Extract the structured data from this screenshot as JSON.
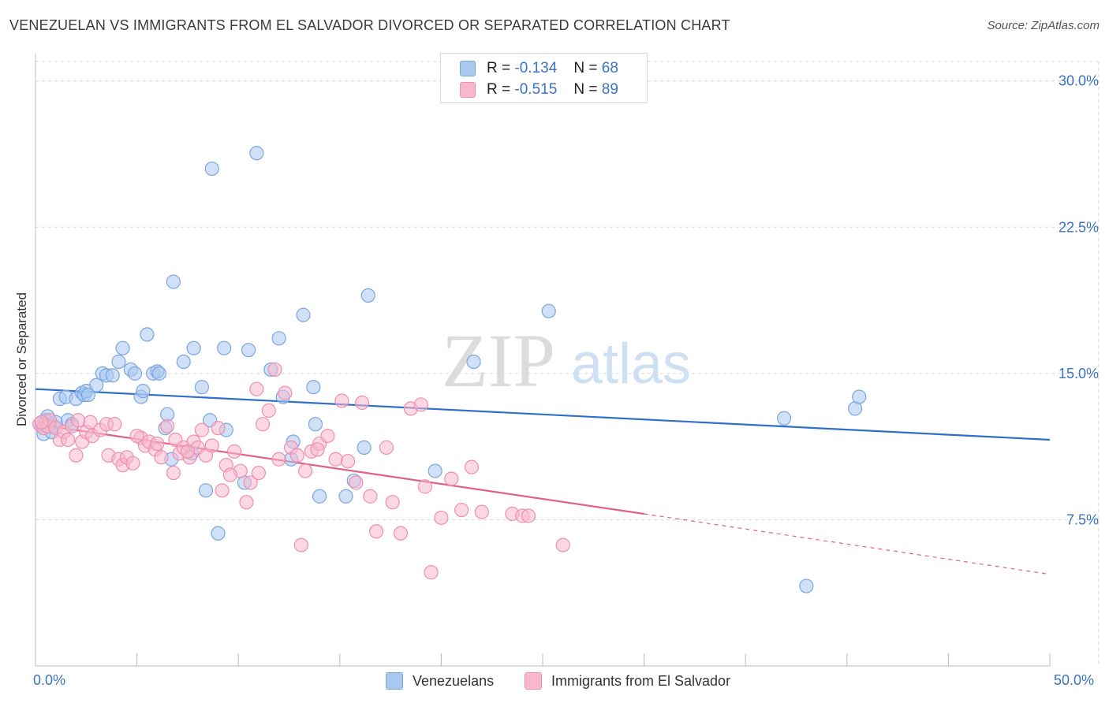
{
  "header": {
    "title": "VENEZUELAN VS IMMIGRANTS FROM EL SALVADOR DIVORCED OR SEPARATED CORRELATION CHART",
    "source": "Source: ZipAtlas.com"
  },
  "watermark": {
    "zip": "ZIP",
    "atlas": "atlas"
  },
  "legend": {
    "series": [
      {
        "r_label": "R =",
        "r_value": "-0.134",
        "n_label": "N =",
        "n_value": "68",
        "color": "#a9c8f0",
        "border": "#7aa6e0"
      },
      {
        "r_label": "R =",
        "r_value": "-0.515",
        "n_label": "N =",
        "n_value": "89",
        "color": "#f7b8cc",
        "border": "#ee8fae"
      }
    ]
  },
  "bottom_legend": {
    "items": [
      {
        "label": "Venezuelans",
        "color": "#a9c8f0",
        "border": "#7aa6e0"
      },
      {
        "label": "Immigrants from El Salvador",
        "color": "#f7b8cc",
        "border": "#ee8fae"
      }
    ]
  },
  "chart_data": {
    "type": "scatter",
    "title": "VENEZUELAN VS IMMIGRANTS FROM EL SALVADOR DIVORCED OR SEPARATED CORRELATION CHART",
    "xlabel": "",
    "ylabel": "Divorced or Separated",
    "xlim": [
      0,
      50
    ],
    "ylim": [
      0,
      31
    ],
    "x_tick_labels": [
      "0.0%",
      "50.0%"
    ],
    "y_ticks": [
      7.5,
      15.0,
      22.5,
      30.0
    ],
    "y_tick_labels": [
      "7.5%",
      "15.0%",
      "22.5%",
      "30.0%"
    ],
    "grid": true,
    "legend_position": "top-center",
    "series": [
      {
        "name": "Venezuelans",
        "color": "#7aa6e0",
        "fill": "#a9c8f0",
        "line_color": "#2f6fc9",
        "trend": {
          "x": [
            0,
            50
          ],
          "y": [
            14.2,
            11.6
          ]
        },
        "points": [
          [
            0.3,
            12.3
          ],
          [
            0.4,
            11.9
          ],
          [
            0.5,
            12.6
          ],
          [
            0.7,
            12.4
          ],
          [
            0.9,
            12.3
          ],
          [
            1.0,
            12.5
          ],
          [
            1.2,
            13.7
          ],
          [
            1.5,
            13.8
          ],
          [
            1.6,
            12.6
          ],
          [
            2.0,
            13.7
          ],
          [
            2.3,
            14.0
          ],
          [
            2.4,
            13.9
          ],
          [
            2.5,
            14.1
          ],
          [
            3.0,
            14.4
          ],
          [
            3.3,
            15.0
          ],
          [
            3.5,
            14.9
          ],
          [
            4.1,
            15.6
          ],
          [
            4.3,
            16.3
          ],
          [
            4.7,
            15.2
          ],
          [
            5.2,
            13.8
          ],
          [
            5.3,
            14.1
          ],
          [
            5.5,
            17.0
          ],
          [
            5.8,
            15.0
          ],
          [
            6.0,
            15.1
          ],
          [
            6.4,
            12.2
          ],
          [
            6.5,
            12.9
          ],
          [
            6.7,
            10.6
          ],
          [
            6.8,
            19.7
          ],
          [
            7.3,
            15.6
          ],
          [
            7.7,
            10.9
          ],
          [
            7.8,
            16.3
          ],
          [
            8.2,
            14.3
          ],
          [
            8.4,
            9.0
          ],
          [
            8.6,
            12.6
          ],
          [
            8.7,
            25.5
          ],
          [
            9.0,
            6.8
          ],
          [
            9.3,
            16.3
          ],
          [
            9.4,
            12.1
          ],
          [
            10.3,
            9.4
          ],
          [
            10.5,
            16.2
          ],
          [
            10.9,
            26.3
          ],
          [
            11.6,
            15.2
          ],
          [
            12.0,
            16.8
          ],
          [
            12.2,
            13.8
          ],
          [
            12.6,
            10.6
          ],
          [
            12.7,
            11.5
          ],
          [
            13.2,
            18.0
          ],
          [
            13.7,
            14.3
          ],
          [
            13.8,
            12.4
          ],
          [
            14.0,
            8.7
          ],
          [
            15.3,
            8.7
          ],
          [
            15.7,
            9.5
          ],
          [
            16.2,
            11.2
          ],
          [
            16.4,
            19.0
          ],
          [
            19.7,
            10.0
          ],
          [
            21.6,
            15.6
          ],
          [
            25.3,
            18.2
          ],
          [
            36.9,
            12.7
          ],
          [
            38.0,
            4.1
          ],
          [
            40.4,
            13.2
          ],
          [
            40.6,
            13.8
          ],
          [
            0.8,
            12.0
          ],
          [
            1.8,
            12.4
          ],
          [
            2.6,
            13.9
          ],
          [
            4.9,
            15.0
          ],
          [
            6.1,
            15.0
          ],
          [
            3.8,
            14.9
          ],
          [
            0.6,
            12.8
          ]
        ]
      },
      {
        "name": "Immigrants from El Salvador",
        "color": "#ee8fae",
        "fill": "#f7b8cc",
        "line_color": "#e0608a",
        "trend": {
          "x": [
            0,
            30
          ],
          "y": [
            12.4,
            7.8
          ]
        },
        "trend_dashed": {
          "x": [
            30,
            50
          ],
          "y": [
            7.8,
            4.7
          ]
        },
        "points": [
          [
            0.2,
            12.4
          ],
          [
            0.4,
            12.2
          ],
          [
            0.6,
            12.3
          ],
          [
            0.7,
            12.6
          ],
          [
            1.0,
            12.2
          ],
          [
            1.2,
            11.6
          ],
          [
            1.4,
            12.0
          ],
          [
            1.6,
            11.6
          ],
          [
            1.8,
            12.3
          ],
          [
            2.0,
            10.8
          ],
          [
            2.3,
            11.5
          ],
          [
            2.5,
            12.0
          ],
          [
            2.7,
            12.5
          ],
          [
            2.8,
            11.8
          ],
          [
            3.2,
            12.1
          ],
          [
            3.5,
            12.4
          ],
          [
            3.6,
            10.8
          ],
          [
            3.9,
            12.4
          ],
          [
            4.1,
            10.6
          ],
          [
            4.3,
            10.3
          ],
          [
            4.5,
            10.7
          ],
          [
            4.8,
            10.4
          ],
          [
            5.2,
            11.7
          ],
          [
            5.4,
            11.3
          ],
          [
            5.6,
            11.5
          ],
          [
            5.9,
            11.1
          ],
          [
            6.0,
            11.4
          ],
          [
            6.2,
            10.7
          ],
          [
            6.5,
            12.3
          ],
          [
            6.8,
            9.9
          ],
          [
            6.9,
            11.6
          ],
          [
            7.1,
            10.9
          ],
          [
            7.3,
            11.2
          ],
          [
            7.6,
            10.7
          ],
          [
            7.8,
            11.5
          ],
          [
            8.0,
            11.2
          ],
          [
            8.2,
            12.1
          ],
          [
            8.4,
            10.8
          ],
          [
            8.7,
            11.3
          ],
          [
            9.0,
            12.2
          ],
          [
            9.2,
            9.0
          ],
          [
            9.4,
            10.3
          ],
          [
            9.8,
            11.0
          ],
          [
            10.1,
            10.0
          ],
          [
            10.4,
            8.4
          ],
          [
            10.6,
            9.4
          ],
          [
            10.9,
            14.2
          ],
          [
            11.2,
            12.4
          ],
          [
            11.5,
            13.1
          ],
          [
            11.8,
            15.2
          ],
          [
            12.0,
            10.6
          ],
          [
            12.3,
            14.0
          ],
          [
            12.6,
            11.2
          ],
          [
            12.9,
            10.8
          ],
          [
            13.1,
            6.2
          ],
          [
            13.3,
            10.0
          ],
          [
            13.6,
            11.0
          ],
          [
            14.0,
            11.4
          ],
          [
            14.4,
            11.8
          ],
          [
            14.8,
            10.6
          ],
          [
            15.1,
            13.6
          ],
          [
            15.4,
            10.5
          ],
          [
            15.8,
            9.4
          ],
          [
            16.1,
            13.5
          ],
          [
            16.5,
            8.7
          ],
          [
            16.8,
            6.9
          ],
          [
            17.3,
            11.2
          ],
          [
            17.6,
            8.4
          ],
          [
            18.0,
            6.8
          ],
          [
            18.5,
            13.2
          ],
          [
            19.0,
            13.4
          ],
          [
            19.2,
            9.2
          ],
          [
            19.5,
            4.8
          ],
          [
            20.0,
            7.6
          ],
          [
            20.5,
            9.6
          ],
          [
            21.0,
            8.0
          ],
          [
            21.5,
            10.2
          ],
          [
            22.0,
            7.9
          ],
          [
            23.5,
            7.8
          ],
          [
            24.0,
            7.7
          ],
          [
            26.0,
            6.2
          ],
          [
            24.3,
            7.7
          ],
          [
            5.0,
            11.8
          ],
          [
            7.5,
            11.0
          ],
          [
            9.6,
            9.8
          ],
          [
            11.0,
            9.9
          ],
          [
            13.9,
            11.1
          ],
          [
            2.1,
            12.6
          ],
          [
            0.3,
            12.5
          ]
        ]
      }
    ]
  }
}
